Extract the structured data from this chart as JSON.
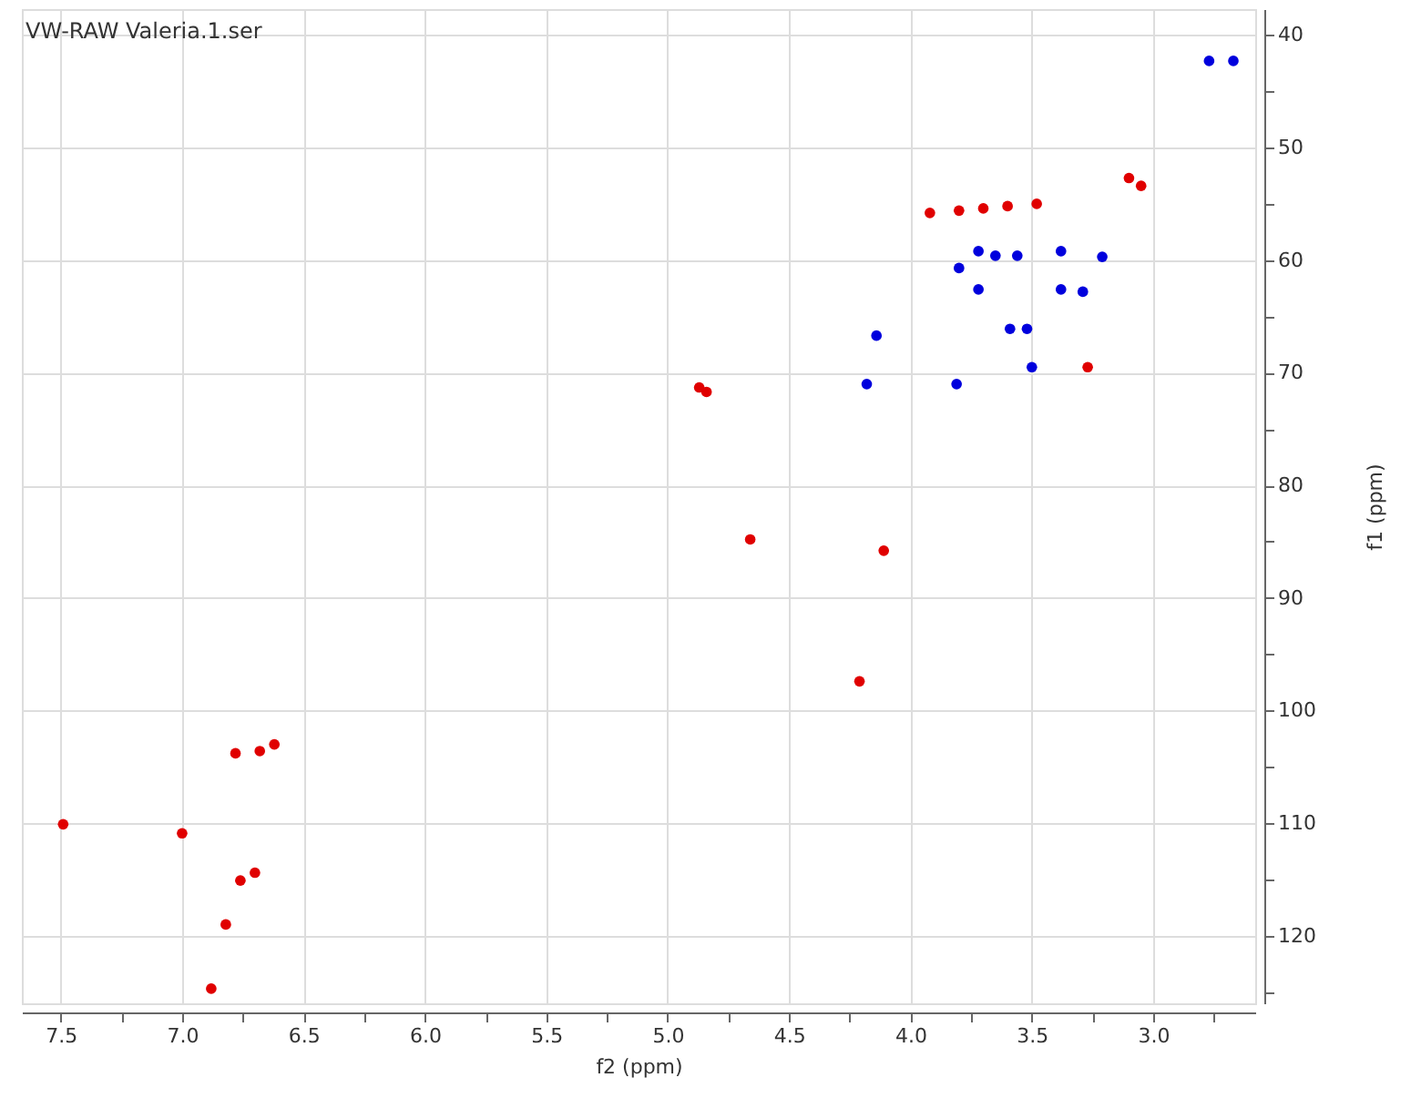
{
  "chart_data": {
    "type": "scatter",
    "title": "VW-RAW Valeria.1.ser",
    "xlabel": "f2 (ppm)",
    "ylabel": "f1 (ppm)",
    "xlim": [
      7.66,
      2.58
    ],
    "ylim": [
      126,
      37.7
    ],
    "xticks": [
      7.5,
      {
        "value": 7.25,
        "label": null
      },
      {
        "value": 7,
        "label": "7.0"
      },
      {
        "value": 6.75,
        "label": null
      },
      6.5,
      {
        "value": 6.25,
        "label": null
      },
      {
        "value": 6,
        "label": "6.0"
      },
      {
        "value": 5.75,
        "label": null
      },
      5.5,
      {
        "value": 5.25,
        "label": null
      },
      {
        "value": 5,
        "label": "5.0"
      },
      {
        "value": 4.75,
        "label": null
      },
      4.5,
      {
        "value": 4.25,
        "label": null
      },
      {
        "value": 4,
        "label": "4.0"
      },
      {
        "value": 3.75,
        "label": null
      },
      3.5,
      {
        "value": 3.25,
        "label": null
      },
      {
        "value": 3,
        "label": "3.0"
      },
      {
        "value": 2.75,
        "label": null
      }
    ],
    "yticks": [
      40,
      {
        "value": 45,
        "label": null
      },
      50,
      {
        "value": 55,
        "label": null
      },
      60,
      {
        "value": 65,
        "label": null
      },
      70,
      {
        "value": 75,
        "label": null
      },
      80,
      {
        "value": 85,
        "label": null
      },
      90,
      {
        "value": 95,
        "label": null
      },
      100,
      {
        "value": 105,
        "label": null
      },
      110,
      {
        "value": 115,
        "label": null
      },
      120,
      {
        "value": 125,
        "label": null
      }
    ],
    "grid": true,
    "marker": "circle",
    "series": [
      {
        "color": "#e00000",
        "x": [
          3.92,
          3.8,
          3.7,
          3.6,
          3.48,
          3.1,
          3.05,
          3.27,
          4.87,
          4.84,
          4.66,
          4.11,
          4.21,
          6.78,
          6.68,
          6.62,
          7.49,
          7.0,
          6.7,
          6.76,
          6.82,
          6.88
        ],
        "values": [
          55.8,
          55.6,
          55.4,
          55.2,
          55.0,
          52.7,
          53.4,
          69.5,
          71.3,
          71.7,
          84.8,
          85.8,
          97.4,
          103.8,
          103.6,
          103.0,
          110.1,
          110.9,
          114.4,
          115.1,
          119.0,
          124.7
        ]
      },
      {
        "color": "#0000dd",
        "x": [
          2.77,
          2.67,
          3.72,
          3.65,
          3.56,
          3.38,
          3.21,
          3.38,
          3.29,
          3.59,
          3.52,
          3.5,
          4.14,
          4.18,
          3.81,
          3.8,
          3.72
        ],
        "values": [
          42.3,
          42.3,
          59.2,
          59.6,
          59.6,
          59.2,
          59.7,
          62.6,
          62.8,
          66.1,
          66.1,
          69.5,
          66.7,
          71.0,
          71.0,
          60.7,
          62.6
        ]
      }
    ]
  }
}
